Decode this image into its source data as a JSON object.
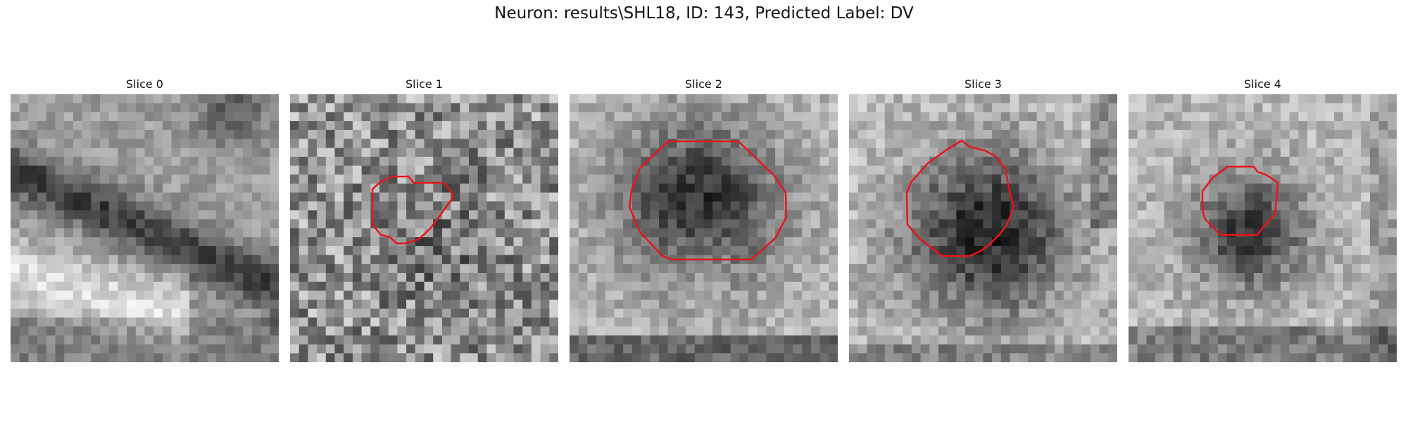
{
  "figure": {
    "suptitle": "Neuron: results\\SHL18, ID: 143, Predicted Label: DV",
    "contour_color": "#e8141c",
    "panels": [
      {
        "title": "Slice 0",
        "description": "noisy grayscale EM patch, dark diagonal band upper left, bright band lower left, no contour"
      },
      {
        "title": "Slice 1",
        "description": "very noisy patch with small irregular red outline right of center"
      },
      {
        "title": "Slice 2",
        "description": "dark rounded vesicle-like region outlined by red octagon"
      },
      {
        "title": "Slice 3",
        "description": "dark round region outlined by red contour"
      },
      {
        "title": "Slice 4",
        "description": "smaller dark round region outlined by red contour"
      }
    ]
  }
}
